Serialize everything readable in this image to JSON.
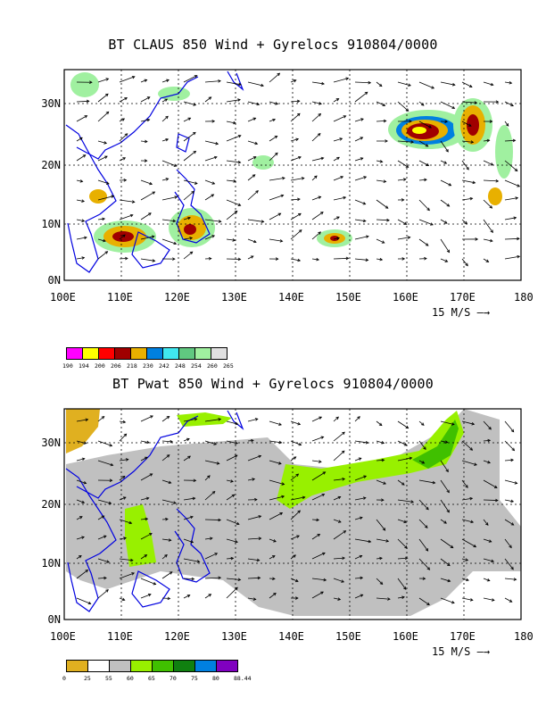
{
  "panel1": {
    "title": "BT CLAUS 850 Wind + Gyrelocs 910804/0000",
    "x_ticks": [
      "100E",
      "110E",
      "120E",
      "130E",
      "140E",
      "150E",
      "160E",
      "170E",
      "180"
    ],
    "y_ticks": [
      "30N",
      "20N",
      "10N",
      "0N"
    ],
    "vector_scale_label": "15 M/S",
    "colorbar": {
      "labels": [
        "190",
        "194",
        "200",
        "206",
        "218",
        "230",
        "242",
        "248",
        "254",
        "260",
        "265"
      ],
      "colors": [
        "#ff00ff",
        "#ffff00",
        "#ff0000",
        "#a00000",
        "#e8b000",
        "#0080e0",
        "#40e8f0",
        "#60c880",
        "#a0f0a0",
        "#e0e0e0"
      ]
    }
  },
  "panel2": {
    "title": "BT Pwat 850 Wind + Gyrelocs 910804/0000",
    "x_ticks": [
      "100E",
      "110E",
      "120E",
      "130E",
      "140E",
      "150E",
      "160E",
      "170E",
      "180"
    ],
    "y_ticks": [
      "30N",
      "20N",
      "10N",
      "0N"
    ],
    "vector_scale_label": "15 M/S",
    "colorbar": {
      "labels": [
        "0",
        "25",
        "55",
        "60",
        "65",
        "70",
        "75",
        "80",
        "88.44"
      ],
      "colors": [
        "#e0b020",
        "#ffffff",
        "#c0c0c0",
        "#98f000",
        "#40c000",
        "#108010",
        "#0080e0",
        "#8000c0"
      ]
    }
  }
}
